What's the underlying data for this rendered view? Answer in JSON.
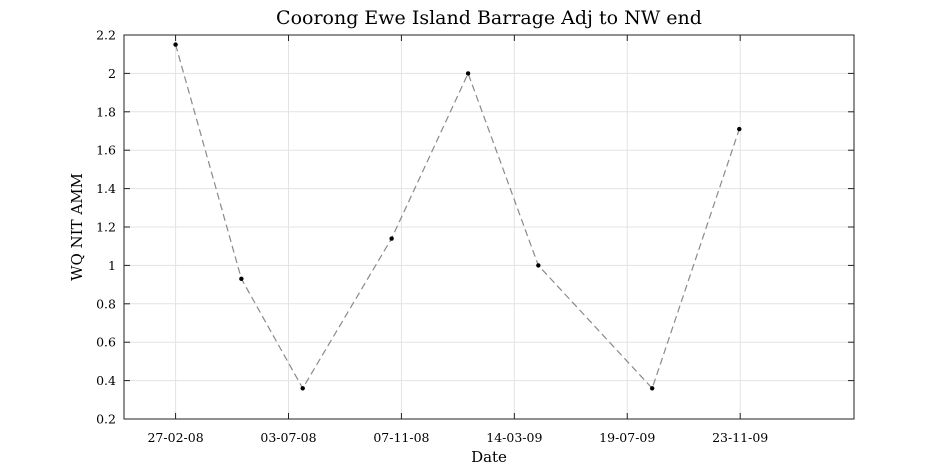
{
  "chart_data": {
    "type": "line",
    "title": "Coorong Ewe Island Barrage Adj to NW end",
    "xlabel": "Date",
    "ylabel": "WQ NIT AMM",
    "x_is_date": true,
    "xlim": [
      "2007-12-31",
      "2010-03-31"
    ],
    "ylim": [
      0.2,
      2.2
    ],
    "grid": true,
    "xticks": [
      {
        "date": "2008-02-27",
        "label": "27-02-08"
      },
      {
        "date": "2008-07-03",
        "label": "03-07-08"
      },
      {
        "date": "2008-11-07",
        "label": "07-11-08"
      },
      {
        "date": "2009-03-14",
        "label": "14-03-09"
      },
      {
        "date": "2009-07-19",
        "label": "19-07-09"
      },
      {
        "date": "2009-11-23",
        "label": "23-11-09"
      }
    ],
    "yticks": [
      0.2,
      0.4,
      0.6,
      0.8,
      1,
      1.2,
      1.4,
      1.6,
      1.8,
      2,
      2.2
    ],
    "ytick_labels": [
      "0.2",
      "0.4",
      "0.6",
      "0.8",
      "1",
      "1.2",
      "1.4",
      "1.6",
      "1.8",
      "2",
      "2.2"
    ],
    "series": [
      {
        "color": "#000000",
        "line_color": "#8a8a8a",
        "line_style": "dashed",
        "x": [
          "2008-02-27",
          "2008-05-11",
          "2008-07-19",
          "2008-10-27",
          "2009-01-21",
          "2009-04-10",
          "2009-08-16",
          "2009-11-22"
        ],
        "y": [
          2.15,
          0.93,
          0.36,
          1.14,
          2.0,
          1.0,
          0.36,
          1.71
        ]
      }
    ]
  }
}
